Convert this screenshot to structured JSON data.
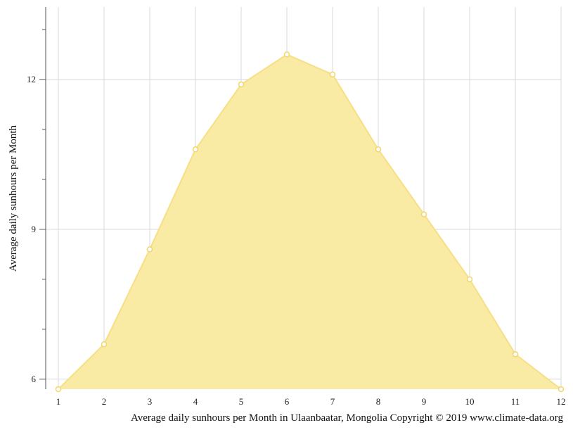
{
  "chart_data": {
    "type": "area",
    "x": [
      1,
      2,
      3,
      4,
      5,
      6,
      7,
      8,
      9,
      10,
      11,
      12
    ],
    "series": [
      {
        "values": [
          5.8,
          6.7,
          8.6,
          10.6,
          11.9,
          12.5,
          12.1,
          10.6,
          9.3,
          8.0,
          6.5,
          5.8
        ]
      }
    ],
    "xlim": [
      1,
      12
    ],
    "ylim": [
      5.8,
      13.45
    ],
    "yticks_major": [
      6,
      9,
      12
    ],
    "yticks_minor": [
      7,
      8,
      10,
      11,
      13
    ],
    "ylabel": "Average daily sunhours per Month",
    "xlabel": "",
    "caption": "Average daily sunhours per Month in Ulaanbaatar, Mongolia Copyright © 2019 www.climate-data.org",
    "grid": true,
    "colors": {
      "fill": "#f9eaa4",
      "line": "#f7df86",
      "marker_fill": "#ffffff",
      "marker_stroke": "#f2d66b"
    }
  }
}
